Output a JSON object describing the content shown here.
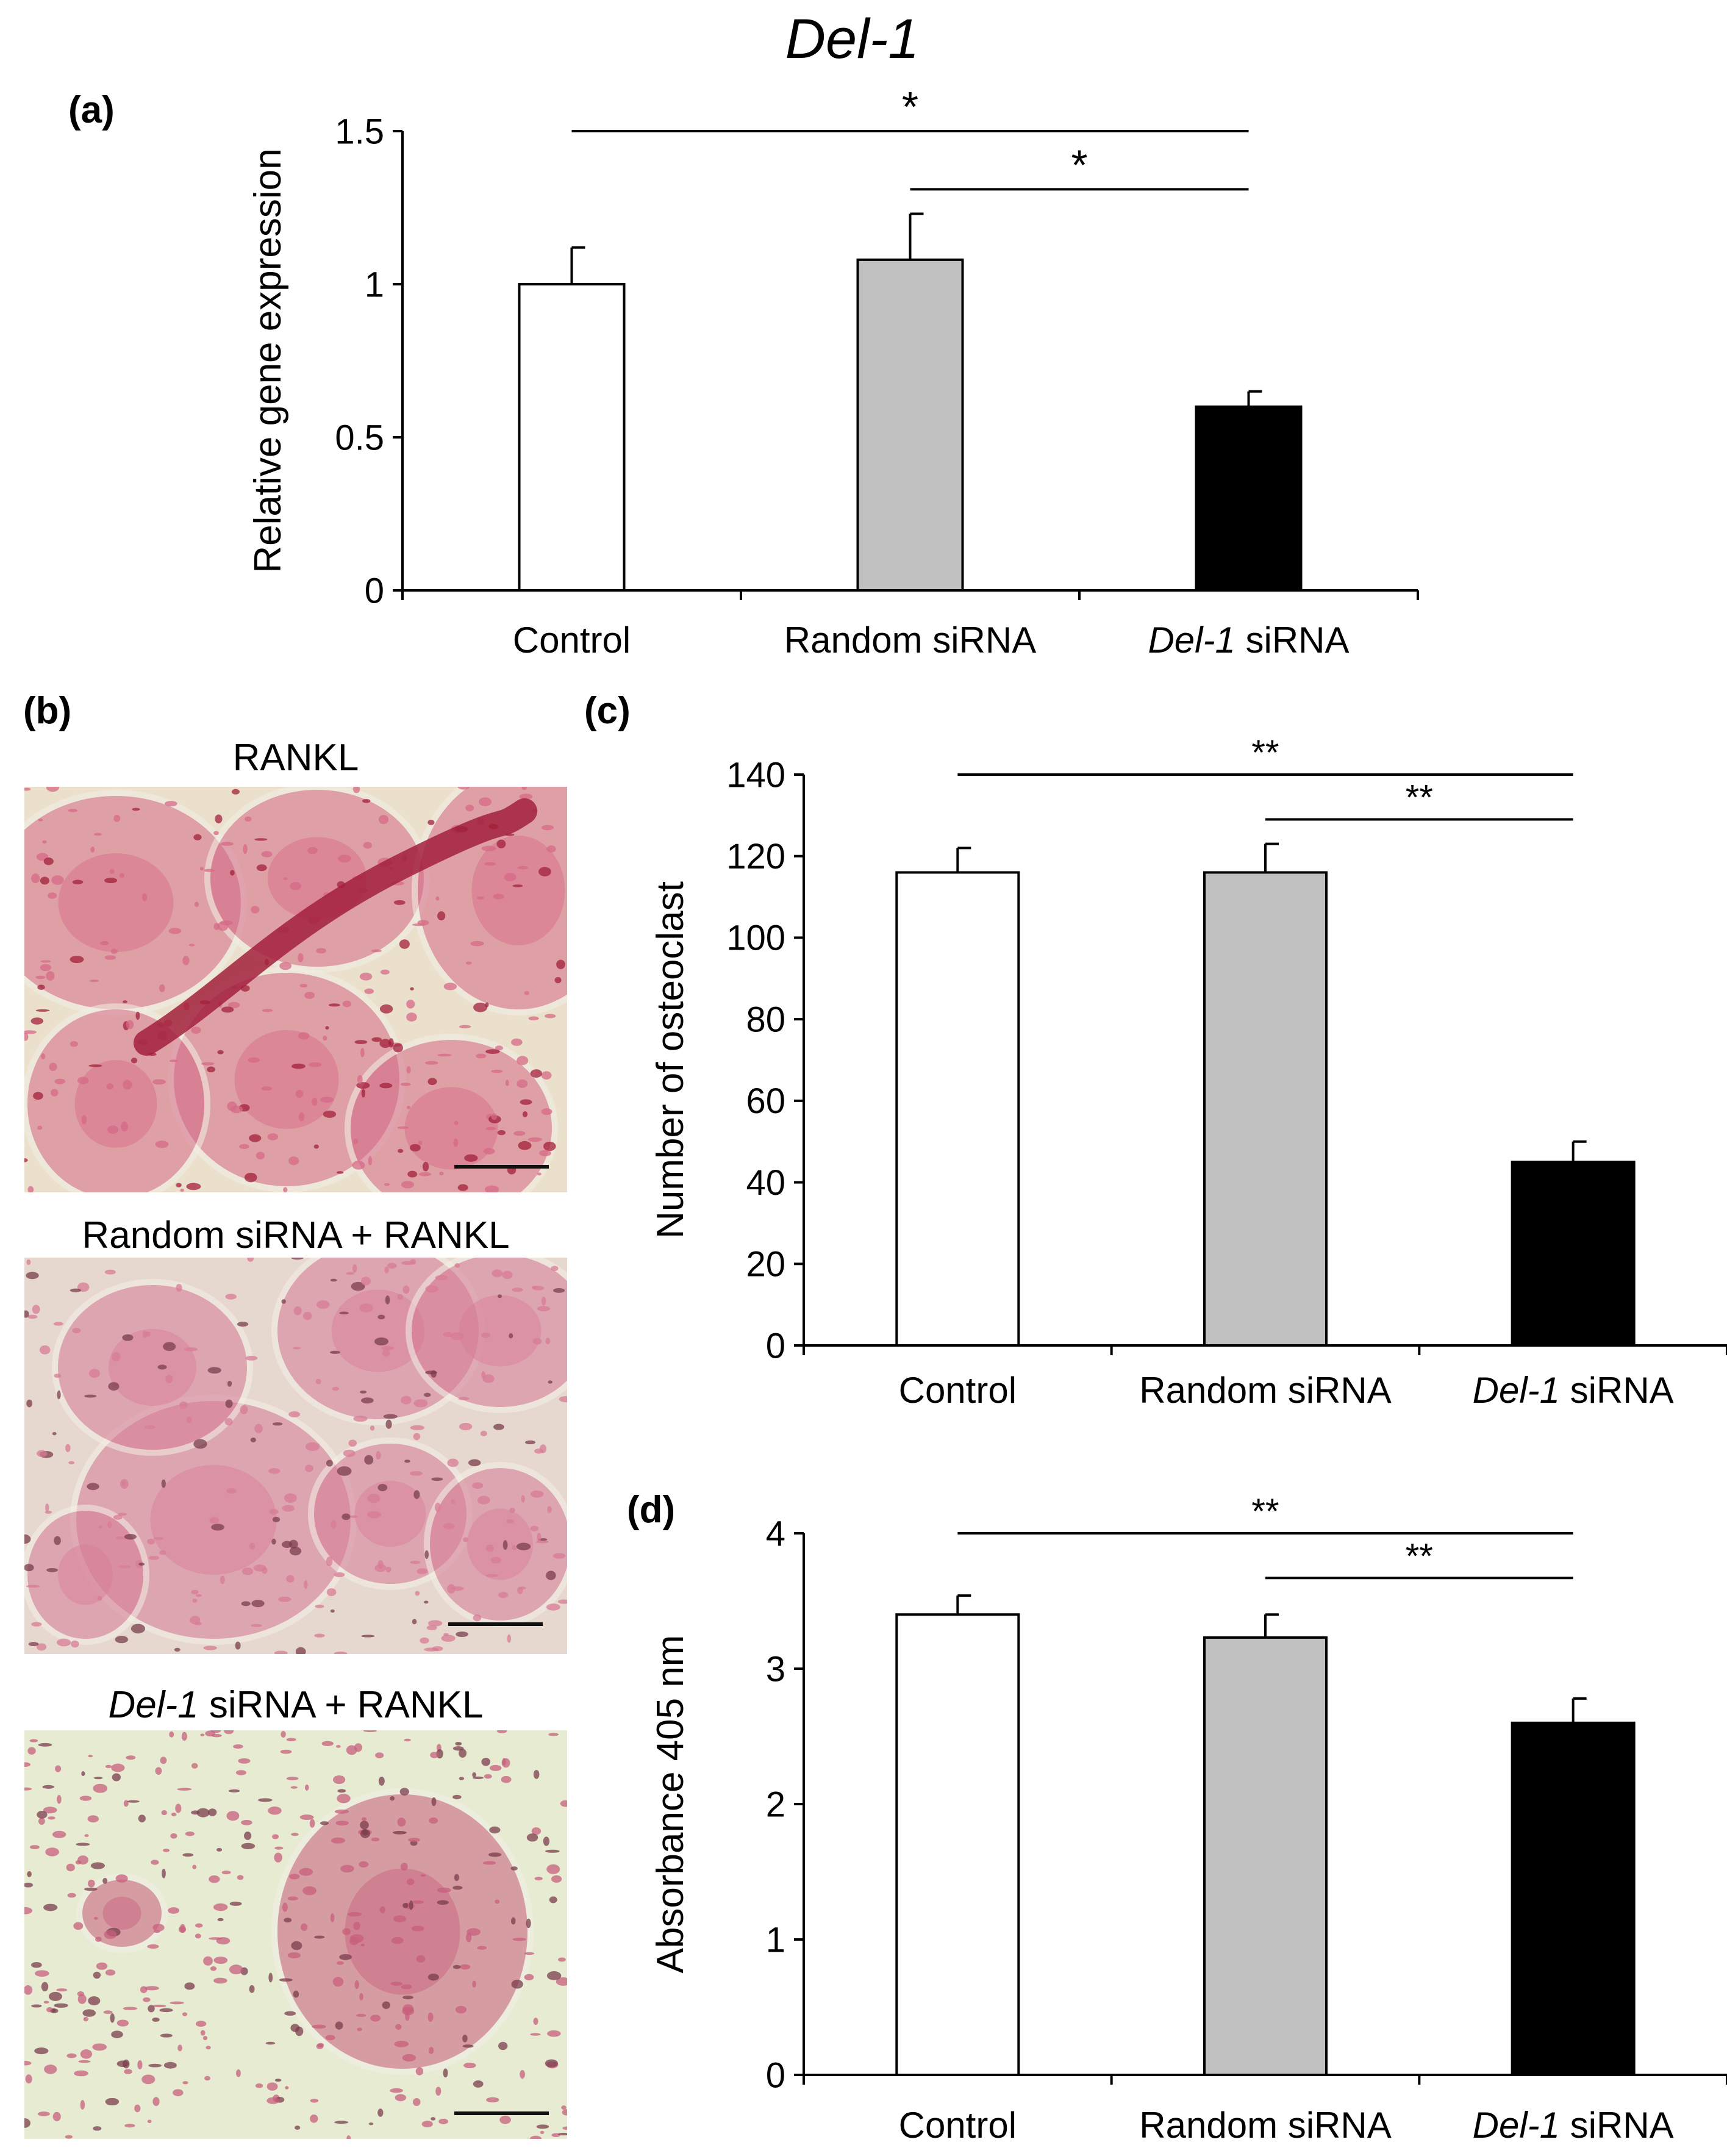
{
  "figure": {
    "panel_a_label": "(a)",
    "panel_b_label": "(b)",
    "panel_c_label": "(c)",
    "panel_d_label": "(d)",
    "colors": {
      "control": "#ffffff",
      "random": "#c0c0c0",
      "del1": "#000000",
      "axis": "#000000"
    }
  },
  "images": {
    "rankl": {
      "title": "RANKL",
      "background": "#eae0cc",
      "cell_color": "#d66a87",
      "dark_color": "#a2203b"
    },
    "random": {
      "title": "Random siRNA + RANKL",
      "background": "#e6d8cf",
      "cell_color": "#d77c96",
      "dark_color": "#7a3e4c"
    },
    "del1": {
      "title_italic": "Del-1",
      "title_rest": " siRNA + RANKL",
      "background": "#e7ebd2",
      "cell_color": "#c75f7c",
      "dark_color": "#7a3e4c"
    }
  },
  "chart_data": [
    {
      "type": "bar",
      "panel": "a",
      "title": "Del-1",
      "ylabel": "Relative gene expression",
      "xlabel": "",
      "ylim": [
        0,
        1.5
      ],
      "yticks": [
        0,
        0.5,
        1,
        1.5
      ],
      "ytick_labels": [
        "0",
        "0.5",
        "1",
        "1.5"
      ],
      "categories": [
        {
          "italic": "",
          "text": "Control"
        },
        {
          "italic": "",
          "text": "Random siRNA"
        },
        {
          "italic": "Del-1",
          "text": " siRNA"
        }
      ],
      "values": [
        1.0,
        1.08,
        0.6
      ],
      "errors": [
        0.12,
        0.15,
        0.05
      ],
      "significance": [
        {
          "from": 0,
          "to": 2,
          "label": "*",
          "y": 1.5
        },
        {
          "from": 1,
          "to": 2,
          "label": "*",
          "y": 1.31
        }
      ],
      "grid": false
    },
    {
      "type": "bar",
      "panel": "c",
      "title": "",
      "ylabel": "Number of osteoclast",
      "xlabel": "",
      "ylim": [
        0,
        140
      ],
      "yticks": [
        0,
        20,
        40,
        60,
        80,
        100,
        120,
        140
      ],
      "ytick_labels": [
        "0",
        "20",
        "40",
        "60",
        "80",
        "100",
        "120",
        "140"
      ],
      "categories": [
        {
          "italic": "",
          "text": "Control"
        },
        {
          "italic": "",
          "text": "Random  siRNA"
        },
        {
          "italic": "Del-1",
          "text": " siRNA"
        }
      ],
      "values": [
        116,
        116,
        45
      ],
      "errors": [
        6,
        7,
        5
      ],
      "significance": [
        {
          "from": 0,
          "to": 2,
          "label": "**",
          "y": 140
        },
        {
          "from": 1,
          "to": 2,
          "label": "**",
          "y": 129
        }
      ],
      "grid": false
    },
    {
      "type": "bar",
      "panel": "d",
      "title": "",
      "ylabel": "Absorbance 405 nm",
      "xlabel": "",
      "ylim": [
        0,
        4
      ],
      "yticks": [
        0,
        1,
        2,
        3,
        4
      ],
      "ytick_labels": [
        "0",
        "1",
        "2",
        "3",
        "4"
      ],
      "categories": [
        {
          "italic": "",
          "text": "Control"
        },
        {
          "italic": "",
          "text": "Random  siRNA"
        },
        {
          "italic": "Del-1",
          "text": " siRNA"
        }
      ],
      "values": [
        3.4,
        3.23,
        2.6
      ],
      "errors": [
        0.14,
        0.17,
        0.18
      ],
      "significance": [
        {
          "from": 0,
          "to": 2,
          "label": "**",
          "y": 4.0
        },
        {
          "from": 1,
          "to": 2,
          "label": "**",
          "y": 3.67
        }
      ],
      "grid": false
    }
  ]
}
